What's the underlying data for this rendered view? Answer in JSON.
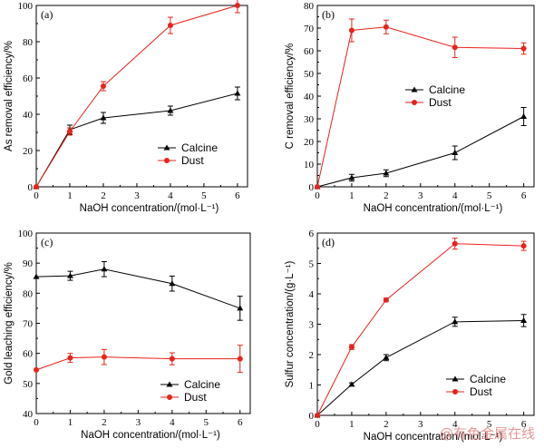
{
  "colors": {
    "calcine": "#000000",
    "dust": "#e8231c"
  },
  "watermark": "@有色金属在线",
  "chart_data": [
    {
      "id": "a",
      "type": "line",
      "panel_label": "(a)",
      "xlabel": "NaOH concentration/(mol·L⁻¹)",
      "ylabel": "As removal efficiency/%",
      "xlim": [
        0,
        6.3
      ],
      "ylim": [
        0,
        100
      ],
      "xticks": [
        0,
        1,
        2,
        3,
        4,
        5,
        6
      ],
      "yticks": [
        0,
        20,
        40,
        60,
        80,
        100
      ],
      "legend_position": "bottom-right",
      "series": [
        {
          "name": "Calcine",
          "marker": "triangle",
          "color": "#000000",
          "x": [
            0,
            1,
            2,
            4,
            6
          ],
          "y": [
            0,
            31.5,
            38,
            42,
            51.5
          ],
          "err": [
            0,
            2.5,
            3,
            2.5,
            3.5
          ]
        },
        {
          "name": "Dust",
          "marker": "circle",
          "color": "#e8231c",
          "x": [
            0,
            1,
            2,
            4,
            6
          ],
          "y": [
            0,
            30.5,
            55.5,
            89,
            100
          ],
          "err": [
            0,
            2,
            2.5,
            4.5,
            4
          ]
        }
      ]
    },
    {
      "id": "b",
      "type": "line",
      "panel_label": "(b)",
      "xlabel": "NaOH concentration/(mol·L⁻¹)",
      "ylabel": "C removal efficiency/%",
      "xlim": [
        0,
        6.3
      ],
      "ylim": [
        0,
        80
      ],
      "xticks": [
        0,
        1,
        2,
        3,
        4,
        5,
        6
      ],
      "yticks": [
        0,
        10,
        20,
        30,
        40,
        50,
        60,
        70,
        80
      ],
      "legend_position": "middle-center",
      "series": [
        {
          "name": "Calcine",
          "marker": "triangle",
          "color": "#000000",
          "x": [
            0,
            1,
            2,
            4,
            6
          ],
          "y": [
            0,
            4,
            6,
            15,
            31
          ],
          "err": [
            0,
            1.5,
            1.5,
            3,
            4
          ]
        },
        {
          "name": "Dust",
          "marker": "circle",
          "color": "#e8231c",
          "x": [
            0,
            1,
            2,
            4,
            6
          ],
          "y": [
            0,
            69,
            70.5,
            61.5,
            61
          ],
          "err": [
            0,
            5,
            3,
            4.5,
            2.5
          ]
        }
      ]
    },
    {
      "id": "c",
      "type": "line",
      "panel_label": "(c)",
      "xlabel": "NaOH concentration/(mol·L⁻¹)",
      "ylabel": "Gold leaching efficiency/%",
      "xlim": [
        0,
        6.3
      ],
      "ylim": [
        40,
        100
      ],
      "xticks": [
        0,
        1,
        2,
        3,
        4,
        5,
        6
      ],
      "yticks": [
        40,
        50,
        60,
        70,
        80,
        90,
        100
      ],
      "legend_position": "bottom-right",
      "series": [
        {
          "name": "Calcine",
          "marker": "triangle",
          "color": "#000000",
          "x": [
            0,
            1,
            2,
            4,
            6
          ],
          "y": [
            85.5,
            85.8,
            88,
            83.2,
            75
          ],
          "err": [
            0,
            1.5,
            2.5,
            2.5,
            4
          ]
        },
        {
          "name": "Dust",
          "marker": "circle",
          "color": "#e8231c",
          "x": [
            0,
            1,
            2,
            4,
            6
          ],
          "y": [
            54.5,
            58.5,
            58.8,
            58.2,
            58.2
          ],
          "err": [
            0,
            1.5,
            2.5,
            2,
            4.5
          ]
        }
      ]
    },
    {
      "id": "d",
      "type": "line",
      "panel_label": "(d)",
      "xlabel": "NaOH concentration/(mol·L⁻¹)",
      "ylabel": "Sulfur concentration/(g·L⁻¹)",
      "xlim": [
        0,
        6.3
      ],
      "ylim": [
        0,
        6
      ],
      "xticks": [
        0,
        1,
        2,
        3,
        4,
        5,
        6
      ],
      "yticks": [
        0,
        1,
        2,
        3,
        4,
        5,
        6
      ],
      "legend_position": "bottom-right",
      "series": [
        {
          "name": "Calcine",
          "marker": "triangle",
          "color": "#000000",
          "x": [
            0,
            1,
            2,
            4,
            6
          ],
          "y": [
            0,
            1.02,
            1.9,
            3.08,
            3.12
          ],
          "err": [
            0,
            0.05,
            0.1,
            0.15,
            0.2
          ]
        },
        {
          "name": "Dust",
          "marker": "circle",
          "color": "#e8231c",
          "x": [
            0,
            1,
            2,
            4,
            6
          ],
          "y": [
            0,
            2.25,
            3.8,
            5.65,
            5.58
          ],
          "err": [
            0,
            0.08,
            0.06,
            0.18,
            0.15
          ]
        }
      ]
    }
  ]
}
